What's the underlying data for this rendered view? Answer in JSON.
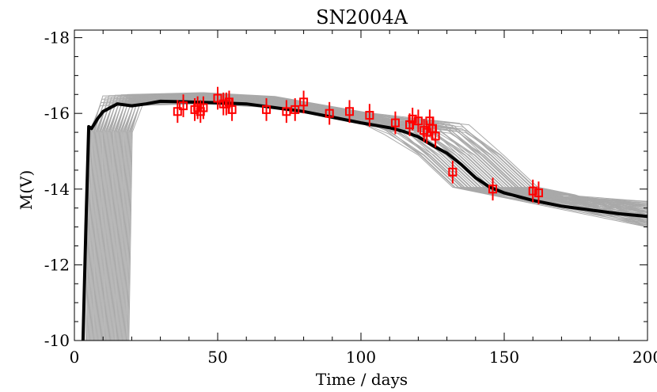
{
  "chart_data": {
    "type": "line",
    "title": "SN2004A",
    "xlabel": "Time / days",
    "ylabel": "M(V)",
    "xlim": [
      0,
      200
    ],
    "ylim": [
      -10,
      -18.2
    ],
    "y_inverted": true,
    "x_ticks": [
      0,
      50,
      100,
      150,
      200
    ],
    "x_tick_labels": [
      "0",
      "50",
      "100",
      "150",
      "200"
    ],
    "y_ticks": [
      -18,
      -16,
      -14,
      -12,
      -10
    ],
    "y_tick_labels": [
      "-18",
      "-16",
      "-14",
      "-12",
      "-10"
    ],
    "grid": false,
    "legend": "none",
    "colors": {
      "model_ensemble": "#a9a9a9",
      "best_fit": "#000000",
      "observations": "#ff0000",
      "axes": "#000000"
    },
    "series": [
      {
        "role": "best-fit",
        "style": "line",
        "x": [
          3,
          4,
          5,
          6,
          8,
          10,
          15,
          20,
          25,
          30,
          40,
          50,
          60,
          70,
          80,
          90,
          100,
          110,
          115,
          120,
          125,
          130,
          135,
          140,
          145,
          150,
          160,
          170,
          180,
          190,
          200
        ],
        "y": [
          -10.0,
          -13.0,
          -15.65,
          -15.6,
          -15.85,
          -16.05,
          -16.25,
          -16.2,
          -16.25,
          -16.32,
          -16.3,
          -16.28,
          -16.25,
          -16.15,
          -16.05,
          -15.9,
          -15.75,
          -15.62,
          -15.52,
          -15.38,
          -15.15,
          -14.95,
          -14.65,
          -14.3,
          -14.05,
          -13.9,
          -13.7,
          -13.55,
          -13.45,
          -13.35,
          -13.28
        ]
      },
      {
        "role": "observations",
        "style": "markers-with-errorbars",
        "marker": "open-square",
        "x": [
          36,
          38,
          42,
          43,
          44,
          45,
          50,
          52,
          53,
          54,
          55,
          67,
          74,
          77,
          80,
          89,
          96,
          103,
          112,
          117,
          118,
          120,
          122,
          123,
          124,
          125,
          126,
          132,
          146,
          160,
          162
        ],
        "y": [
          -16.05,
          -16.2,
          -16.1,
          -16.15,
          -16.05,
          -16.15,
          -16.4,
          -16.25,
          -16.25,
          -16.3,
          -16.1,
          -16.1,
          -16.05,
          -16.1,
          -16.3,
          -16.0,
          -16.05,
          -15.95,
          -15.75,
          -15.7,
          -15.85,
          -15.8,
          -15.55,
          -15.5,
          -15.8,
          -15.6,
          -15.4,
          -14.45,
          -14.0,
          -13.95,
          -13.9
        ],
        "yerr": [
          0.3,
          0.3,
          0.3,
          0.3,
          0.3,
          0.3,
          0.3,
          0.3,
          0.3,
          0.3,
          0.3,
          0.3,
          0.3,
          0.3,
          0.3,
          0.3,
          0.3,
          0.3,
          0.3,
          0.3,
          0.3,
          0.3,
          0.3,
          0.3,
          0.3,
          0.3,
          0.3,
          0.3,
          0.3,
          0.3,
          0.3
        ]
      },
      {
        "role": "model-ensemble",
        "style": "many-thin-lines",
        "count": 50,
        "explosion_time_range": [
          4,
          19
        ],
        "plateau_end_range": [
          120,
          150
        ],
        "late_time_range": [
          -13.0,
          -13.7
        ]
      }
    ]
  }
}
